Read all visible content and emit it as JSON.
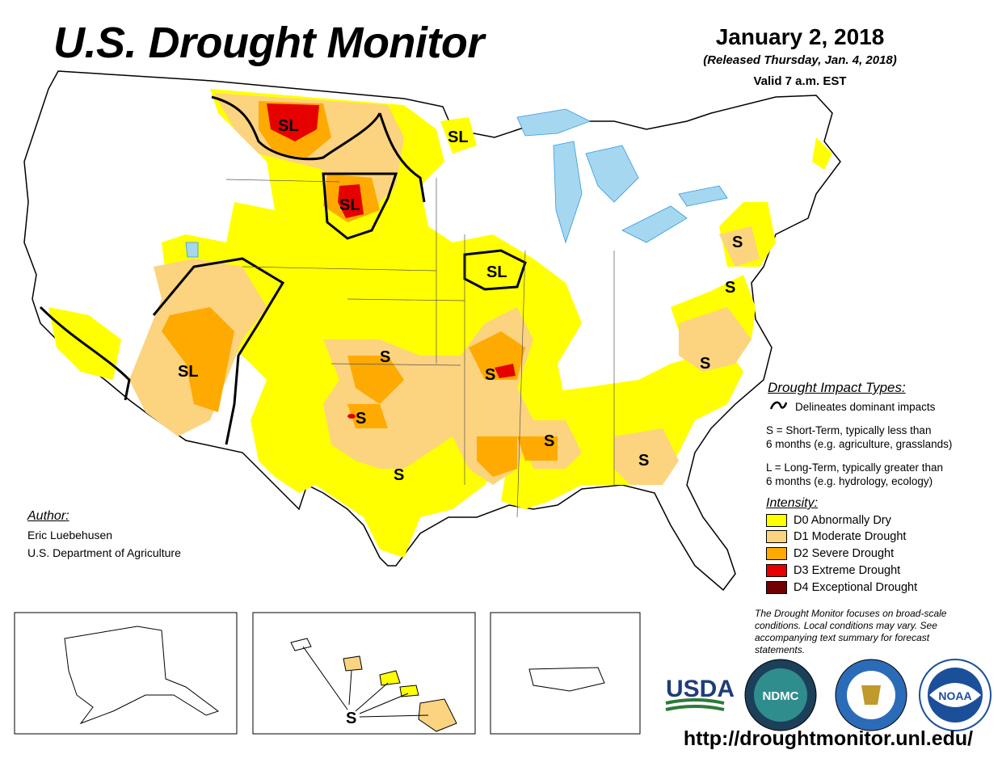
{
  "header": {
    "title": "U.S. Drought Monitor",
    "date": "January 2, 2018",
    "released": "(Released Thursday, Jan. 4, 2018)",
    "valid": "Valid 7 a.m. EST"
  },
  "impact_types": {
    "title": "Drought Impact Types:",
    "delineates": "Delineates dominant impacts",
    "short_term_line1": "S = Short-Term, typically less than",
    "short_term_line2": "6 months (e.g. agriculture, grasslands)",
    "long_term_line1": "L = Long-Term, typically greater than",
    "long_term_line2": "6 months (e.g. hydrology, ecology)"
  },
  "intensity": {
    "title": "Intensity:",
    "items": [
      {
        "label": "D0 Abnormally Dry",
        "color": "#ffff00"
      },
      {
        "label": "D1 Moderate Drought",
        "color": "#fcd37f"
      },
      {
        "label": "D2 Severe Drought",
        "color": "#ffaa00"
      },
      {
        "label": "D3 Extreme Drought",
        "color": "#e60000"
      },
      {
        "label": "D4 Exceptional Drought",
        "color": "#730000"
      }
    ]
  },
  "note": "The Drought Monitor focuses on broad-scale conditions. Local conditions may vary. See accompanying text summary for forecast statements.",
  "author": {
    "title": "Author:",
    "name": "Eric Luebehusen",
    "org": "U.S. Department of Agriculture"
  },
  "map_labels": {
    "sl_montana": "SL",
    "sl_north_dakota": "SL",
    "sl_sd": "SL",
    "sl_iowa": "SL",
    "sl_arizona": "SL",
    "s_kansas": "S",
    "s_missouri": "S",
    "s_oklahoma": "S",
    "s_texas": "S",
    "s_alabama": "S",
    "s_georgia": "S",
    "s_north_carolina": "S",
    "s_pennsylvania": "S",
    "s_virginia": "S",
    "s_hawaii": "S"
  },
  "logos": {
    "usda": "USDA",
    "ndmc": "NDMC",
    "noaa": "NOAA"
  },
  "url": "http://droughtmonitor.unl.edu/",
  "colors": {
    "water": "#a6d7f0",
    "river": "#3399dd",
    "border": "#000000"
  }
}
